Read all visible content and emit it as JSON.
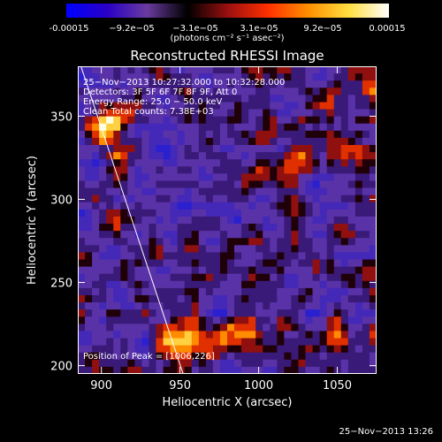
{
  "colorbar": {
    "ticks": [
      "-0.00015",
      "−9.2e−05",
      "−3.1e−05",
      "3.1e−05",
      "9.2e−05",
      "0.00015"
    ],
    "unit": "(photons cm⁻² s⁻¹ asec⁻²)",
    "range": [
      -0.00015,
      0.00015
    ],
    "colors": [
      "#0000ff",
      "#2a00c8",
      "#6a3ca0",
      "#000000",
      "#9a1010",
      "#ff3000",
      "#ff9000",
      "#ffe040",
      "#ffffff"
    ]
  },
  "chart_data": {
    "type": "heatmap",
    "title": "Reconstructed RHESSI Image",
    "xlabel": "Heliocentric X (arcsec)",
    "ylabel": "Heliocentric Y (arcsec)",
    "xlim": [
      885,
      1075
    ],
    "ylim": [
      195,
      380
    ],
    "xticks": [
      900,
      950,
      1000,
      1050
    ],
    "yticks": [
      200,
      250,
      300,
      350
    ],
    "limb_line": [
      [
        887,
        380
      ],
      [
        952,
        195
      ]
    ],
    "hot_regions": [
      {
        "x": 905,
        "y": 345,
        "w": 30,
        "h": 40
      },
      {
        "x": 955,
        "y": 215,
        "w": 40,
        "h": 30
      },
      {
        "x": 985,
        "y": 220,
        "w": 30,
        "h": 25
      },
      {
        "x": 1025,
        "y": 320,
        "w": 25,
        "h": 20
      }
    ]
  },
  "annotations": {
    "line1": "25−Nov−2013 10:27:32.000 to 10:32:28.000",
    "line2": "Detectors: 3F 5F 6F 7F 8F 9F, Att 0",
    "line3": "Energy Range: 25.0 − 50.0 keV",
    "line4": "Clean   Total counts: 7.38E+03",
    "peak": "Position of Peak = [1006,226]"
  },
  "timestamp": "25−Nov−2013 13:26"
}
